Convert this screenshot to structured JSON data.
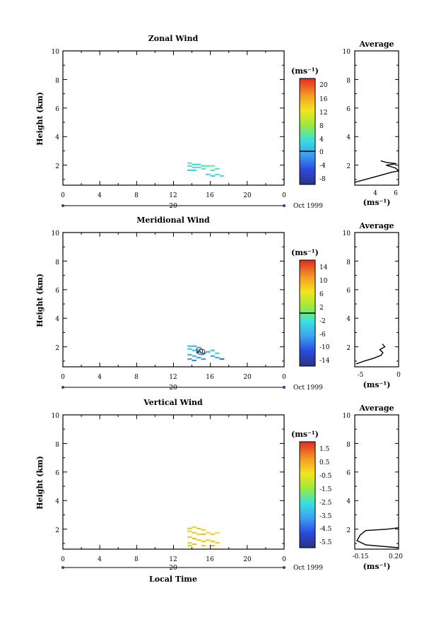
{
  "chart_data": [
    {
      "type": "heatmap",
      "title": "Zonal Wind",
      "ylabel": "Height (km)",
      "xlabel": "",
      "xlim": [
        0,
        24
      ],
      "ylim": [
        0.6,
        10
      ],
      "x_ticks": [
        "0",
        "4",
        "8",
        "12",
        "16",
        "20",
        "0"
      ],
      "y_ticks": [
        "2",
        "4",
        "6",
        "8",
        "10"
      ],
      "date_label": "20",
      "month_label": "Oct 1999",
      "colorbar": {
        "unit_label": "(ms⁻¹)",
        "range": [
          -8,
          22
        ],
        "labels": [
          "20",
          "16",
          "12",
          "8",
          "4",
          "0",
          "-4",
          "-8"
        ],
        "zero_line": 0
      },
      "cells": [
        [
          13.5,
          1.9,
          5
        ],
        [
          14.0,
          2.0,
          4
        ],
        [
          14.5,
          2.0,
          4
        ],
        [
          15.0,
          1.9,
          5
        ],
        [
          15.5,
          1.9,
          6
        ],
        [
          14.0,
          1.8,
          5
        ],
        [
          14.5,
          1.8,
          5
        ],
        [
          15.0,
          1.7,
          6
        ],
        [
          13.5,
          1.6,
          3
        ],
        [
          14.0,
          1.6,
          4
        ],
        [
          16.0,
          1.6,
          6
        ],
        [
          16.5,
          1.7,
          5
        ],
        [
          15.5,
          1.3,
          4
        ],
        [
          16.0,
          1.2,
          3
        ],
        [
          16.5,
          1.3,
          5
        ],
        [
          17.0,
          1.2,
          5
        ],
        [
          13.5,
          2.1,
          6
        ],
        [
          16.0,
          1.9,
          7
        ]
      ],
      "average": {
        "title": "Average",
        "xlabel": "(ms⁻¹)",
        "xlim": [
          2,
          6.2
        ],
        "x_ticks": [
          "4",
          "6"
        ],
        "y_ticks": [
          "2",
          "4",
          "6",
          "8",
          "10"
        ],
        "points": [
          [
            2.0,
            0.8
          ],
          [
            3.0,
            1.0
          ],
          [
            4.5,
            1.3
          ],
          [
            5.5,
            1.5
          ],
          [
            6.2,
            1.6
          ],
          [
            5.9,
            1.8
          ],
          [
            5.0,
            2.0
          ],
          [
            6.0,
            2.1
          ],
          [
            5.0,
            2.2
          ],
          [
            4.5,
            2.3
          ]
        ]
      }
    },
    {
      "type": "heatmap",
      "title": "Meridional Wind",
      "ylabel": "Height (km)",
      "xlabel": "",
      "xlim": [
        0,
        24
      ],
      "ylim": [
        0.6,
        10
      ],
      "x_ticks": [
        "0",
        "4",
        "8",
        "12",
        "16",
        "20",
        "0"
      ],
      "y_ticks": [
        "2",
        "4",
        "6",
        "8",
        "10"
      ],
      "date_label": "20",
      "month_label": "Oct 1999",
      "colorbar": {
        "unit_label": "(ms⁻¹)",
        "range": [
          -16,
          18
        ],
        "labels": [
          "14",
          "10",
          "6",
          "2",
          "-2",
          "-6",
          "-10",
          "-14"
        ],
        "zero_line": 0
      },
      "cells": [
        [
          13.5,
          2.0,
          -4
        ],
        [
          14.0,
          2.0,
          -5
        ],
        [
          14.5,
          1.9,
          -6
        ],
        [
          13.5,
          1.8,
          -3
        ],
        [
          14.0,
          1.7,
          -4
        ],
        [
          14.5,
          1.6,
          -7
        ],
        [
          15.0,
          1.5,
          -8
        ],
        [
          15.5,
          1.6,
          -5
        ],
        [
          16.0,
          1.7,
          -3
        ],
        [
          13.5,
          1.4,
          -5
        ],
        [
          14.0,
          1.3,
          -4
        ],
        [
          14.5,
          1.2,
          -6
        ],
        [
          15.0,
          1.1,
          -7
        ],
        [
          16.0,
          1.3,
          -6
        ],
        [
          16.5,
          1.2,
          -5
        ],
        [
          17.0,
          1.1,
          -9
        ],
        [
          13.5,
          1.1,
          -6
        ],
        [
          14.0,
          1.0,
          -8
        ],
        [
          16.5,
          1.5,
          -2
        ]
      ],
      "contour_label": "10",
      "average": {
        "title": "Average",
        "xlabel": "(ms⁻¹)",
        "xlim": [
          -7,
          0
        ],
        "x_ticks": [
          "-5",
          "0"
        ],
        "y_ticks": [
          "2",
          "4",
          "6",
          "8",
          "10"
        ],
        "points": [
          [
            -6.8,
            0.8
          ],
          [
            -5.5,
            1.0
          ],
          [
            -4.0,
            1.2
          ],
          [
            -2.8,
            1.4
          ],
          [
            -2.5,
            1.6
          ],
          [
            -3.0,
            1.8
          ],
          [
            -2.2,
            2.0
          ],
          [
            -2.6,
            2.2
          ]
        ]
      }
    },
    {
      "type": "heatmap",
      "title": "Vertical Wind",
      "ylabel": "Height (km)",
      "xlabel": "Local Time",
      "xlim": [
        0,
        24
      ],
      "ylim": [
        0.6,
        10
      ],
      "x_ticks": [
        "0",
        "4",
        "8",
        "12",
        "16",
        "20",
        "0"
      ],
      "y_ticks": [
        "2",
        "4",
        "6",
        "8",
        "10"
      ],
      "date_label": "20",
      "month_label": "Oct 1999",
      "colorbar": {
        "unit_label": "(ms⁻¹)",
        "range": [
          -6.5,
          2.5
        ],
        "labels": [
          "1.5",
          "0.5",
          "-0.5",
          "-1.5",
          "-2.5",
          "-3.5",
          "-4.5",
          "-5.5"
        ],
        "zero_line": null
      },
      "cells": [
        [
          13.5,
          2.0,
          0.4
        ],
        [
          14.0,
          2.1,
          0.2
        ],
        [
          14.5,
          2.0,
          0.5
        ],
        [
          15.0,
          1.9,
          0.3
        ],
        [
          13.5,
          1.8,
          0.1
        ],
        [
          14.0,
          1.7,
          0.4
        ],
        [
          14.5,
          1.6,
          0.2
        ],
        [
          15.0,
          1.6,
          0.6
        ],
        [
          15.5,
          1.7,
          0.1
        ],
        [
          16.0,
          1.6,
          0.3
        ],
        [
          16.5,
          1.7,
          0.0
        ],
        [
          13.5,
          1.4,
          0.3
        ],
        [
          14.0,
          1.3,
          0.5
        ],
        [
          14.5,
          1.2,
          0.2
        ],
        [
          15.0,
          1.1,
          0.4
        ],
        [
          15.5,
          1.2,
          0.1
        ],
        [
          16.0,
          1.1,
          0.3
        ],
        [
          13.5,
          1.0,
          0.2
        ],
        [
          14.0,
          0.9,
          0.4
        ],
        [
          16.5,
          1.0,
          0.1
        ],
        [
          13.5,
          0.8,
          0.3
        ],
        [
          15.0,
          0.8,
          0.2
        ],
        [
          16.0,
          0.8,
          0.5
        ]
      ],
      "average": {
        "title": "Average",
        "xlabel": "(ms⁻¹)",
        "xlim": [
          -0.2,
          0.2
        ],
        "x_ticks": [
          "-0.15",
          "0.20"
        ],
        "y_ticks": [
          "2",
          "4",
          "6",
          "8",
          "10"
        ],
        "points": [
          [
            0.2,
            0.7
          ],
          [
            -0.1,
            0.9
          ],
          [
            -0.18,
            1.2
          ],
          [
            -0.15,
            1.6
          ],
          [
            -0.1,
            1.9
          ],
          [
            0.1,
            2.0
          ],
          [
            0.2,
            2.1
          ]
        ]
      }
    }
  ]
}
